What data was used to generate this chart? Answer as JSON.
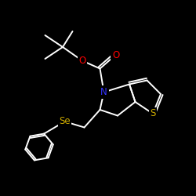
{
  "background": "#000000",
  "bond_color": "#ffffff",
  "atom_colors": {
    "O": "#ff0000",
    "N": "#3333ff",
    "S": "#ccaa00",
    "Se": "#ccaa00"
  },
  "bond_width": 1.4,
  "font_size": 8.5,
  "figsize": [
    2.5,
    2.5
  ],
  "dpi": 100,
  "xlim": [
    0,
    10
  ],
  "ylim": [
    0,
    10
  ]
}
